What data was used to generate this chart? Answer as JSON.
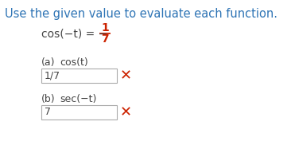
{
  "title": "Use the given value to evaluate each function.",
  "title_color": "#2e74b5",
  "title_fontsize": 10.5,
  "given_eq_text": "cos(−t) = −",
  "given_eq_frac_num": "1",
  "given_eq_frac_den": "7",
  "given_color": "#444444",
  "frac_color": "#cc2200",
  "part_a_label": "(a)",
  "part_a_func": "cos(t)",
  "part_a_answer": "1/7",
  "part_b_label": "(b)",
  "part_b_func": "sec(−t)",
  "part_b_answer": "7",
  "text_color": "#444444",
  "box_edge_color": "#aaaaaa",
  "wrong_color": "#cc2200",
  "background": "#ffffff"
}
